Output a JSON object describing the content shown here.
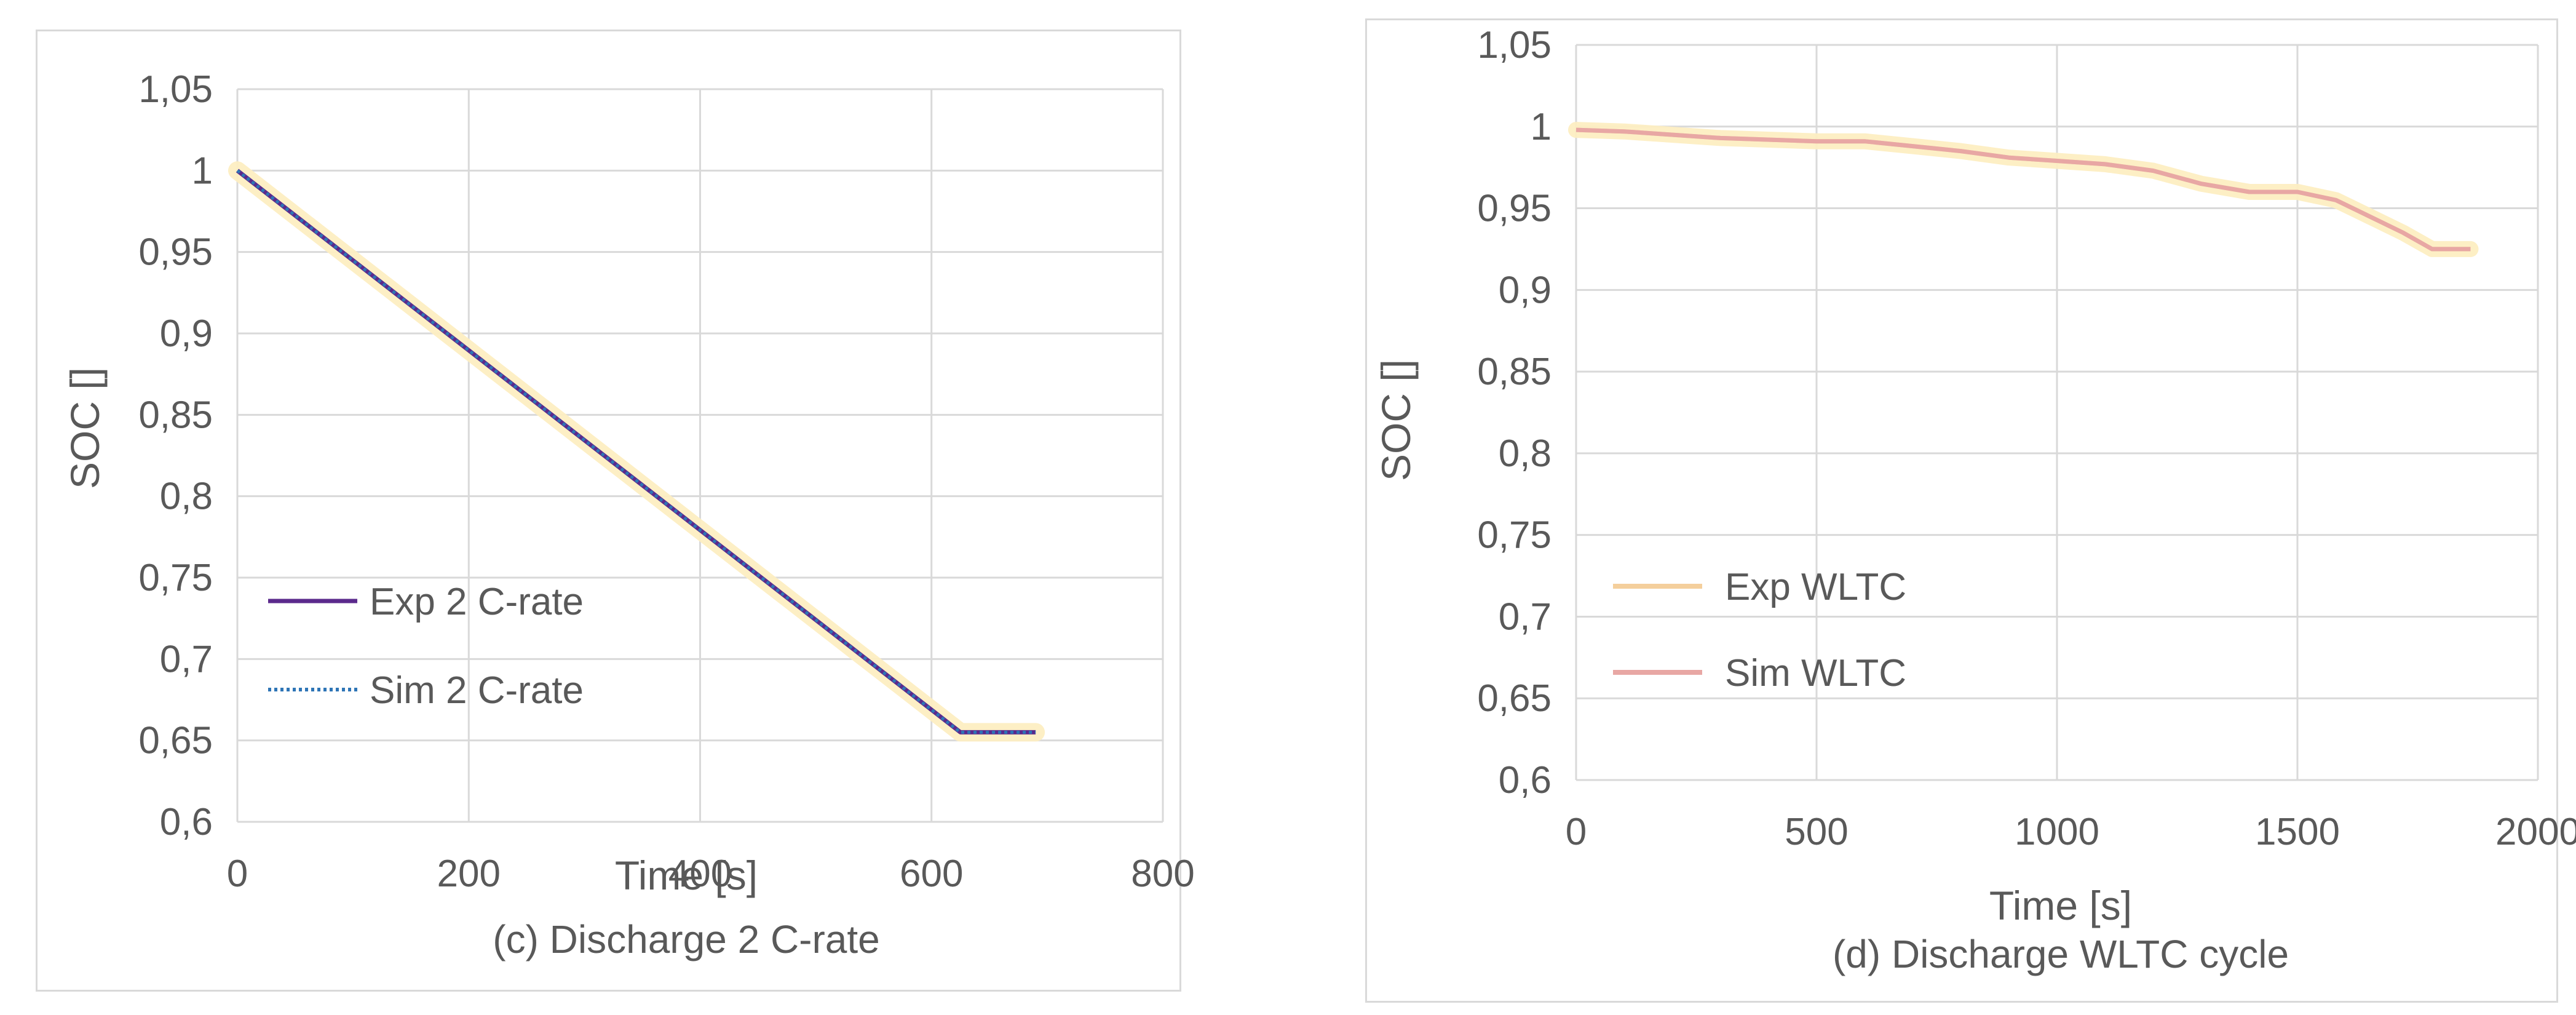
{
  "chart_data": [
    {
      "type": "line",
      "xlabel": "Time [s]",
      "ylabel": "SOC []",
      "caption": "(c) Discharge 2 C-rate",
      "xlim": [
        0,
        800
      ],
      "ylim": [
        0.6,
        1.05
      ],
      "x_ticks": [
        "0",
        "200",
        "400",
        "600",
        "800"
      ],
      "y_ticks": [
        "0,6",
        "0,65",
        "0,7",
        "0,75",
        "0,8",
        "0,85",
        "0,9",
        "0,95",
        "1",
        "1,05"
      ],
      "grid": true,
      "legend_position": "bottom-left",
      "series": [
        {
          "name": "Exp 2 C-rate",
          "style": "solid",
          "color": "#5b2a8c",
          "band_color": "#fdeec2",
          "band_halfwidth": 0.01,
          "points": [
            [
              0,
              1.0
            ],
            [
              625,
              0.655
            ],
            [
              690,
              0.655
            ]
          ]
        },
        {
          "name": "Sim 2 C-rate",
          "style": "dotted",
          "color": "#2e75b6",
          "points": [
            [
              0,
              1.0
            ],
            [
              625,
              0.655
            ],
            [
              690,
              0.655
            ]
          ]
        }
      ]
    },
    {
      "type": "line",
      "xlabel": "Time [s]",
      "ylabel": "SOC []",
      "caption": "(d) Discharge WLTC cycle",
      "xlim": [
        0,
        2000
      ],
      "ylim": [
        0.6,
        1.05
      ],
      "x_ticks": [
        "0",
        "500",
        "1000",
        "1500",
        "2000"
      ],
      "y_ticks": [
        "0,6",
        "0,65",
        "0,7",
        "0,75",
        "0,8",
        "0,85",
        "0,9",
        "0,95",
        "1",
        "1,05"
      ],
      "grid": true,
      "legend_position": "bottom-left",
      "series": [
        {
          "name": "Exp WLTC",
          "style": "solid",
          "color": "#f4cf9c",
          "band_color": "#fdeec2",
          "band_halfwidth": 0.01,
          "points": [
            [
              0,
              0.998
            ],
            [
              100,
              0.997
            ],
            [
              300,
              0.993
            ],
            [
              500,
              0.991
            ],
            [
              600,
              0.991
            ],
            [
              700,
              0.988
            ],
            [
              800,
              0.985
            ],
            [
              900,
              0.981
            ],
            [
              1000,
              0.979
            ],
            [
              1100,
              0.977
            ],
            [
              1200,
              0.973
            ],
            [
              1300,
              0.965
            ],
            [
              1400,
              0.96
            ],
            [
              1500,
              0.96
            ],
            [
              1580,
              0.955
            ],
            [
              1650,
              0.945
            ],
            [
              1720,
              0.935
            ],
            [
              1780,
              0.925
            ],
            [
              1860,
              0.925
            ]
          ]
        },
        {
          "name": "Sim WLTC",
          "style": "solid",
          "color": "#e8a7a4",
          "points": [
            [
              0,
              0.998
            ],
            [
              100,
              0.997
            ],
            [
              300,
              0.993
            ],
            [
              500,
              0.991
            ],
            [
              600,
              0.991
            ],
            [
              700,
              0.988
            ],
            [
              800,
              0.985
            ],
            [
              900,
              0.981
            ],
            [
              1000,
              0.979
            ],
            [
              1100,
              0.977
            ],
            [
              1200,
              0.973
            ],
            [
              1300,
              0.965
            ],
            [
              1400,
              0.96
            ],
            [
              1500,
              0.96
            ],
            [
              1580,
              0.955
            ],
            [
              1650,
              0.945
            ],
            [
              1720,
              0.935
            ],
            [
              1780,
              0.925
            ],
            [
              1860,
              0.925
            ]
          ]
        }
      ]
    }
  ]
}
